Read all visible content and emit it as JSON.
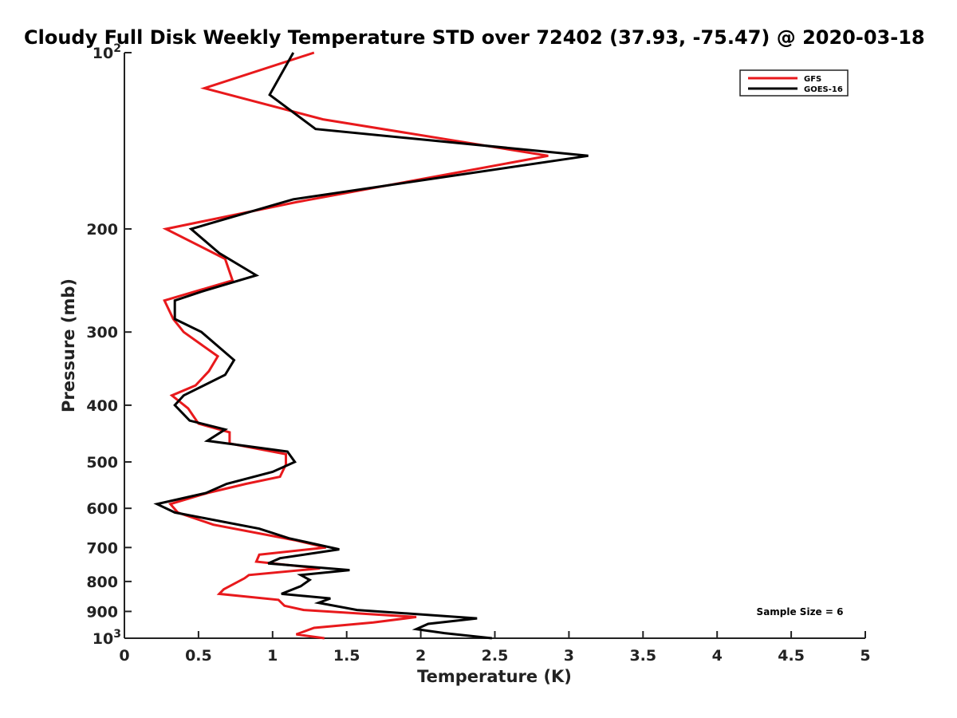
{
  "chart_data": {
    "type": "line",
    "title": "Cloudy Full Disk Weekly Temperature STD over 72402 (37.93, -75.47) @ 2020-03-18",
    "xlabel": "Temperature (K)",
    "ylabel": "Pressure (mb)",
    "xlim": [
      0,
      5
    ],
    "ylim": [
      100,
      1000
    ],
    "yscale": "log",
    "y_reversed": true,
    "grid": false,
    "legend_position": "top-right",
    "x_ticks": [
      {
        "value": 0,
        "label": "0"
      },
      {
        "value": 0.5,
        "label": "0.5"
      },
      {
        "value": 1,
        "label": "1"
      },
      {
        "value": 1.5,
        "label": "1.5"
      },
      {
        "value": 2,
        "label": "2"
      },
      {
        "value": 2.5,
        "label": "2.5"
      },
      {
        "value": 3,
        "label": "3"
      },
      {
        "value": 3.5,
        "label": "3.5"
      },
      {
        "value": 4,
        "label": "4"
      },
      {
        "value": 4.5,
        "label": "4.5"
      },
      {
        "value": 5,
        "label": "5"
      }
    ],
    "y_ticks": [
      {
        "value": 100,
        "label": "10",
        "sup": "2"
      },
      {
        "value": 200,
        "label": "200"
      },
      {
        "value": 300,
        "label": "300"
      },
      {
        "value": 400,
        "label": "400"
      },
      {
        "value": 500,
        "label": "500"
      },
      {
        "value": 600,
        "label": "600"
      },
      {
        "value": 700,
        "label": "700"
      },
      {
        "value": 800,
        "label": "800"
      },
      {
        "value": 900,
        "label": "900"
      },
      {
        "value": 1000,
        "label": "10",
        "sup": "3"
      }
    ],
    "series": [
      {
        "name": "GFS",
        "color": "#e8191c",
        "points": [
          [
            1.28,
            100
          ],
          [
            0.54,
            115
          ],
          [
            1.34,
            130
          ],
          [
            2.86,
            150
          ],
          [
            1.16,
            180
          ],
          [
            0.28,
            200
          ],
          [
            0.68,
            225
          ],
          [
            0.73,
            245
          ],
          [
            0.27,
            265
          ],
          [
            0.33,
            285
          ],
          [
            0.4,
            300
          ],
          [
            0.63,
            330
          ],
          [
            0.57,
            350
          ],
          [
            0.48,
            370
          ],
          [
            0.32,
            385
          ],
          [
            0.43,
            405
          ],
          [
            0.5,
            430
          ],
          [
            0.71,
            445
          ],
          [
            0.71,
            465
          ],
          [
            1.09,
            485
          ],
          [
            1.09,
            505
          ],
          [
            1.05,
            530
          ],
          [
            0.82,
            545
          ],
          [
            0.56,
            565
          ],
          [
            0.31,
            590
          ],
          [
            0.36,
            610
          ],
          [
            0.6,
            640
          ],
          [
            1.15,
            680
          ],
          [
            1.36,
            700
          ],
          [
            0.91,
            720
          ],
          [
            0.89,
            740
          ],
          [
            1.32,
            760
          ],
          [
            0.84,
            780
          ],
          [
            0.81,
            790
          ],
          [
            0.67,
            825
          ],
          [
            0.64,
            840
          ],
          [
            1.04,
            860
          ],
          [
            1.08,
            880
          ],
          [
            1.21,
            895
          ],
          [
            1.97,
            920
          ],
          [
            1.68,
            940
          ],
          [
            1.28,
            960
          ],
          [
            1.16,
            985
          ],
          [
            1.35,
            1000
          ]
        ]
      },
      {
        "name": "GOES-16",
        "color": "#000000",
        "points": [
          [
            1.14,
            100
          ],
          [
            0.98,
            118
          ],
          [
            1.29,
            135
          ],
          [
            3.13,
            150
          ],
          [
            1.14,
            178
          ],
          [
            0.45,
            200
          ],
          [
            0.64,
            220
          ],
          [
            0.89,
            240
          ],
          [
            0.54,
            255
          ],
          [
            0.34,
            265
          ],
          [
            0.34,
            285
          ],
          [
            0.52,
            300
          ],
          [
            0.74,
            335
          ],
          [
            0.68,
            355
          ],
          [
            0.4,
            385
          ],
          [
            0.34,
            400
          ],
          [
            0.44,
            425
          ],
          [
            0.68,
            440
          ],
          [
            0.56,
            460
          ],
          [
            1.1,
            480
          ],
          [
            1.15,
            500
          ],
          [
            1.0,
            520
          ],
          [
            0.69,
            545
          ],
          [
            0.55,
            565
          ],
          [
            0.22,
            590
          ],
          [
            0.34,
            610
          ],
          [
            0.91,
            650
          ],
          [
            1.11,
            675
          ],
          [
            1.45,
            705
          ],
          [
            1.05,
            730
          ],
          [
            0.97,
            745
          ],
          [
            1.52,
            765
          ],
          [
            1.19,
            780
          ],
          [
            1.25,
            795
          ],
          [
            1.19,
            815
          ],
          [
            1.06,
            840
          ],
          [
            1.39,
            855
          ],
          [
            1.31,
            870
          ],
          [
            1.57,
            895
          ],
          [
            2.38,
            925
          ],
          [
            2.05,
            945
          ],
          [
            1.97,
            965
          ],
          [
            2.16,
            980
          ],
          [
            2.48,
            1000
          ]
        ]
      }
    ],
    "annotations": [
      {
        "text": "Sample Size = 6",
        "position": "bottom-right"
      }
    ]
  }
}
